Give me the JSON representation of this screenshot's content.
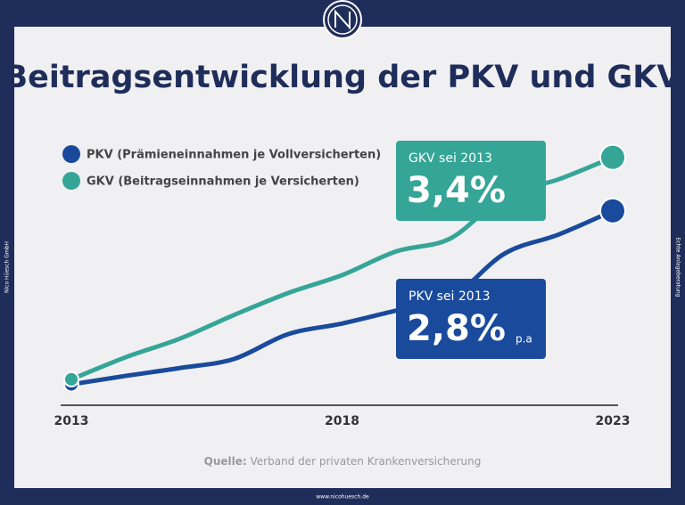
{
  "chart_data": {
    "type": "line",
    "title": "Beitragsentwicklung der PKV und GKV",
    "categories": [
      "2013",
      null,
      null,
      null,
      null,
      "2018",
      null,
      null,
      null,
      null,
      "2023"
    ],
    "series": [
      {
        "name": "PKV (Prämieneinnahmen je Vollversicherten)",
        "color": "#1a4a9c",
        "values": [
          99.7,
          101.2,
          102.6,
          104.2,
          108.6,
          110.5,
          112.8,
          115.0,
          122.9,
          126.3,
          130.5
        ]
      },
      {
        "name": "GKV (Beitragseinnahmen je Versicherten)",
        "color": "#35a597",
        "values": [
          100.6,
          104.5,
          107.8,
          112.0,
          115.9,
          119.1,
          123.3,
          125.6,
          133.1,
          136.1,
          140.0
        ]
      }
    ],
    "ylim": [
      99,
      142
    ],
    "annotations": [
      {
        "label": "GKV sei 2013",
        "rate": "3,4%"
      },
      {
        "label": "PKV sei 2013",
        "rate": "2,8%",
        "unit": "p.a"
      }
    ],
    "source_label": "Quelle:",
    "source": "Verband der privaten Krankenversicherung"
  },
  "side_left": "Nico Hüesch GmbH",
  "side_right": "Echte Anlageberatung",
  "footer": "www.nicohuesch.de"
}
